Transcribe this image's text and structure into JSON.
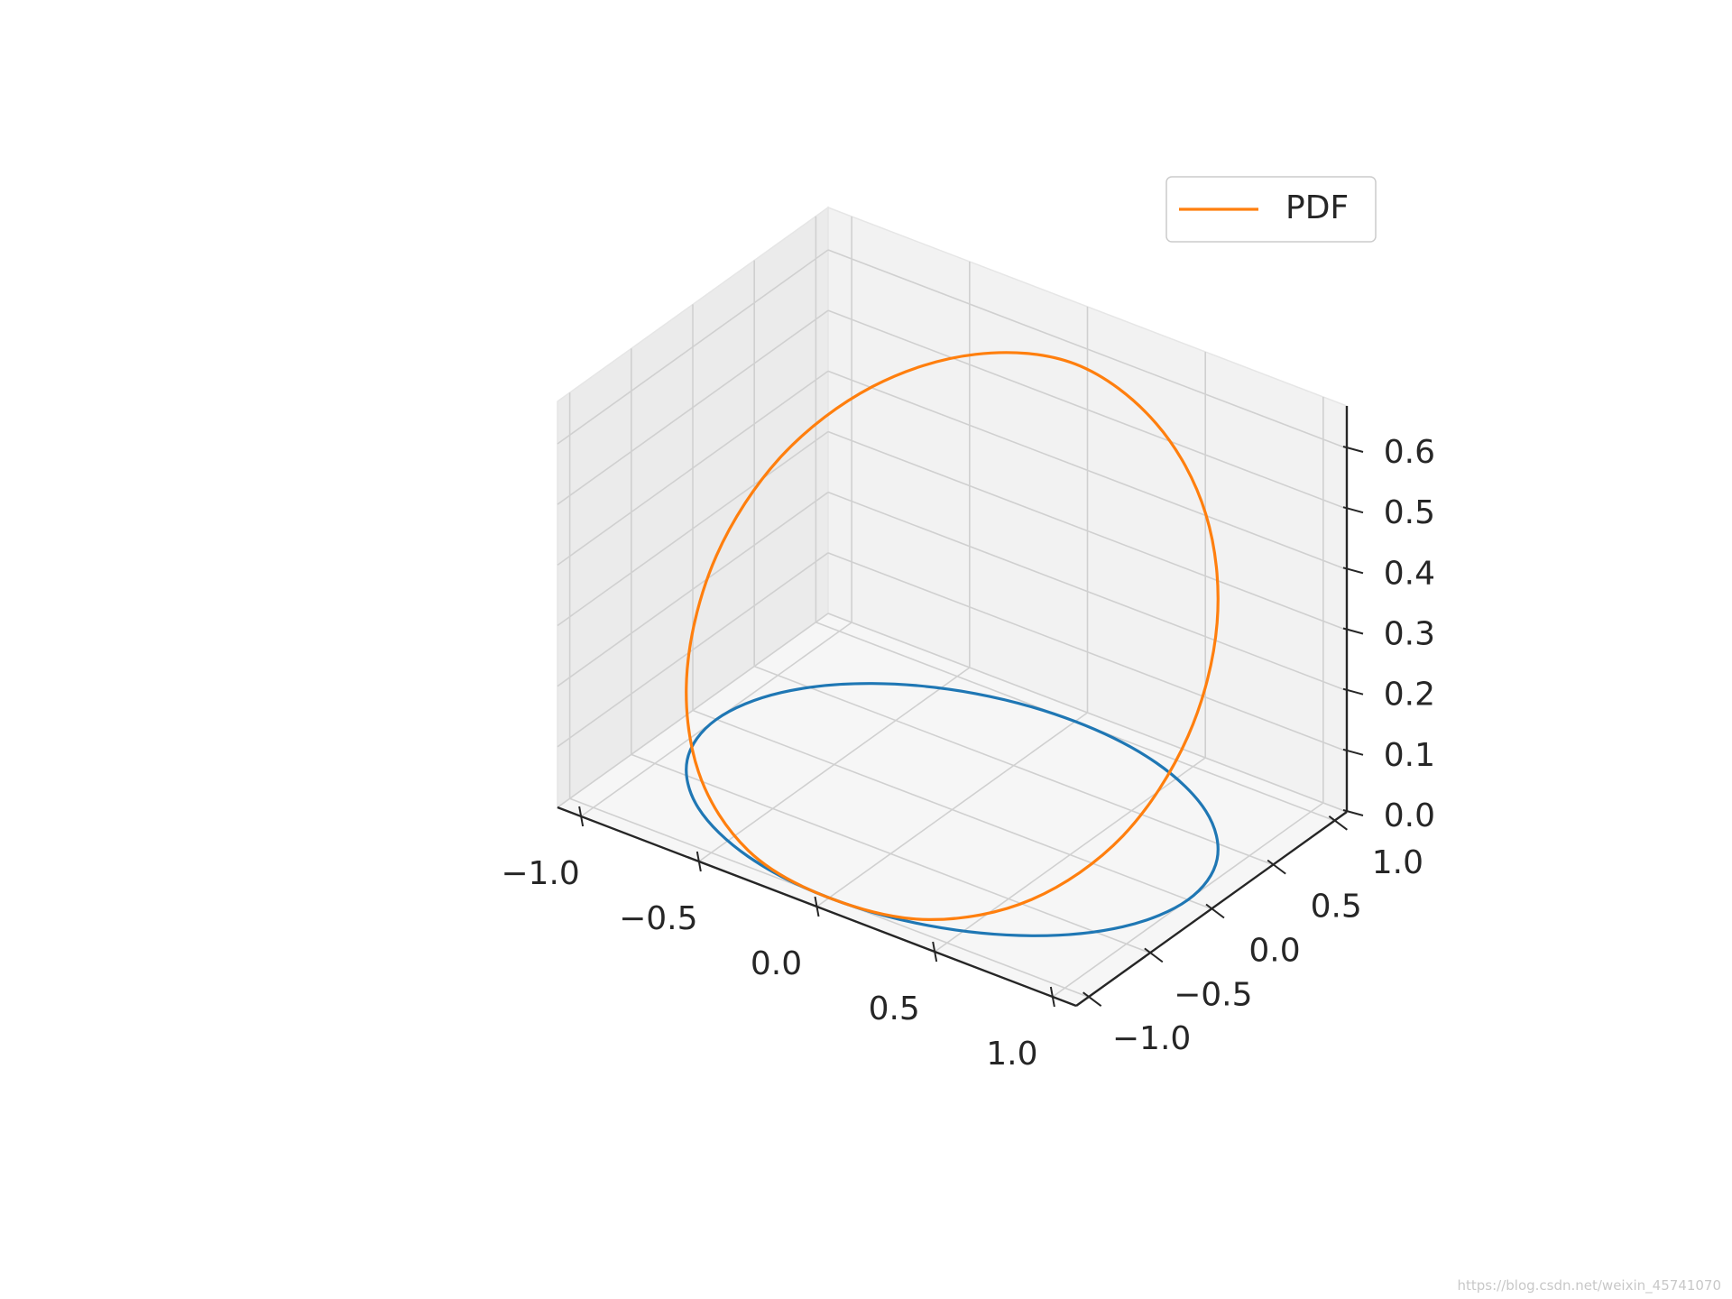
{
  "chart_data": {
    "type": "line",
    "projection": "3d",
    "title": "",
    "xlabel": "",
    "ylabel": "",
    "zlabel": "",
    "xlim": [
      -1.1,
      1.1
    ],
    "ylim": [
      -1.1,
      1.1
    ],
    "zlim": [
      0.0,
      0.67
    ],
    "xticks": [
      -1.0,
      -0.5,
      0.0,
      0.5,
      1.0
    ],
    "yticks": [
      -1.0,
      -0.5,
      0.0,
      0.5,
      1.0
    ],
    "zticks": [
      0.0,
      0.1,
      0.2,
      0.3,
      0.4,
      0.5,
      0.6
    ],
    "x_tick_labels": [
      "−1.0",
      "−0.5",
      "0.0",
      "0.5",
      "1.0"
    ],
    "y_tick_labels": [
      "−1.0",
      "−0.5",
      "0.0",
      "0.5",
      "1.0"
    ],
    "z_tick_labels": [
      "0.0",
      "0.1",
      "0.2",
      "0.3",
      "0.4",
      "0.5",
      "0.6"
    ],
    "grid": true,
    "legend_position": "top-right",
    "series": [
      {
        "color": "#1f77b4",
        "x": [
          1.0,
          0.924,
          0.707,
          0.383,
          0.0,
          -0.383,
          -0.707,
          -0.924,
          -1.0,
          -0.924,
          -0.707,
          -0.383,
          0.0,
          0.383,
          0.707,
          0.924,
          1.0
        ],
        "y": [
          0.0,
          0.383,
          0.707,
          0.924,
          1.0,
          0.924,
          0.707,
          0.383,
          0.0,
          -0.383,
          -0.707,
          -0.924,
          -1.0,
          -0.924,
          -0.707,
          -0.383,
          0.0
        ],
        "z": [
          0,
          0,
          0,
          0,
          0,
          0,
          0,
          0,
          0,
          0,
          0,
          0,
          0,
          0,
          0,
          0,
          0
        ]
      },
      {
        "name": "PDF",
        "color": "#ff7f0e",
        "x": [
          1.0,
          0.924,
          0.707,
          0.383,
          0.0,
          -0.383,
          -0.707,
          -0.924,
          -1.0,
          -0.924,
          -0.707,
          -0.383,
          0.0,
          0.383,
          0.707,
          0.924,
          1.0
        ],
        "y": [
          0.0,
          0.383,
          0.707,
          0.924,
          1.0,
          0.924,
          0.707,
          0.383,
          0.0,
          -0.383,
          -0.707,
          -0.924,
          -1.0,
          -0.924,
          -0.707,
          -0.383,
          0.0
        ],
        "z": [
          0.27,
          0.39,
          0.49,
          0.56,
          0.59,
          0.56,
          0.49,
          0.39,
          0.27,
          0.15,
          0.06,
          0.01,
          0.0,
          0.01,
          0.06,
          0.15,
          0.27
        ]
      }
    ]
  },
  "watermark": "https://blog.csdn.net/weixin_45741070"
}
